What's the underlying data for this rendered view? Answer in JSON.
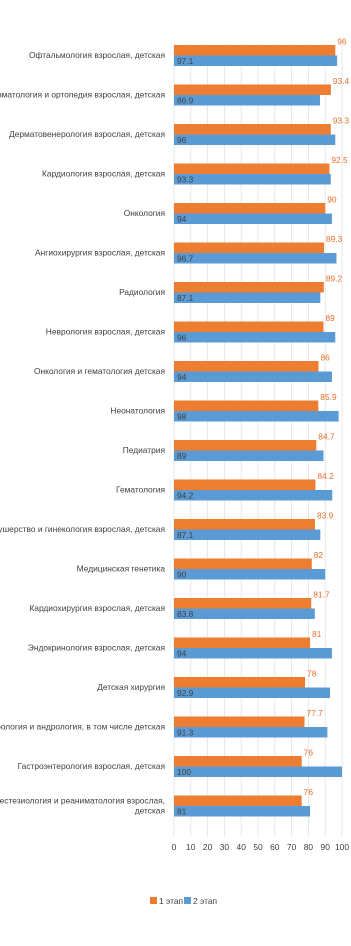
{
  "chart_data": {
    "type": "bar",
    "orientation": "horizontal",
    "categories": [
      "Офтальмология взрослая, детская",
      "Травматология и ортопедия взрослая, детская",
      "Дерматовенерология взрослая, детская",
      "Кардиология взрослая, детская",
      "Онкология",
      "Ангиохирургия взрослая, детская",
      "Радиология",
      "Неврология взрослая, детская",
      "Онкология и гематология детская",
      "Неонатология",
      "Педиатрия",
      "Гематология",
      "Акушерство и гинекология взрослая, детская",
      "Медицинская генетика",
      "Кардиохирургия взрослая, детская",
      "Эндокринология взрослая, детская",
      "Детская хирургия",
      "Урология и андрология, в том числе детская",
      "Гастроэнтерология взрослая, детская",
      "Анестезиология и реаниматология взрослая, детская"
    ],
    "series": [
      {
        "name": "1 этап",
        "color": "#ed7d31",
        "values": [
          96,
          93.4,
          93.3,
          92.5,
          90,
          89.3,
          89.2,
          89,
          86,
          85.9,
          84.7,
          84.2,
          83.9,
          82,
          81.7,
          81,
          78,
          77.7,
          76,
          76
        ],
        "labels": [
          "96",
          "93.4",
          "93.3",
          "92.5",
          "90",
          "89.3",
          "89.2",
          "89",
          "86",
          "85.9",
          "84.7",
          "84.2",
          "83.9",
          "82",
          "81.7",
          "81",
          "78",
          "77.7",
          "76",
          "76"
        ]
      },
      {
        "name": "2 этап",
        "color": "#5b9bd5",
        "values": [
          97.1,
          86.9,
          96,
          93.3,
          94,
          96.7,
          87.1,
          96,
          94,
          98,
          89,
          94.2,
          87.1,
          90,
          83.8,
          94,
          92.9,
          91.3,
          100,
          81
        ],
        "labels": [
          "97.1",
          "86.9",
          "96",
          "93.3",
          "94",
          "96.7",
          "87.1",
          "96",
          "94",
          "98",
          "89",
          "94.2",
          "87.1",
          "90",
          "83.8",
          "94",
          "92.9",
          "91.3",
          "100",
          "81"
        ]
      }
    ],
    "xlim": [
      0,
      100
    ],
    "xticks": [
      "0",
      "10",
      "20",
      "30",
      "40",
      "50",
      "60",
      "70",
      "80",
      "90",
      "100"
    ],
    "grid": true,
    "legend": "bottom",
    "title": "",
    "xlabel": "",
    "ylabel": ""
  }
}
